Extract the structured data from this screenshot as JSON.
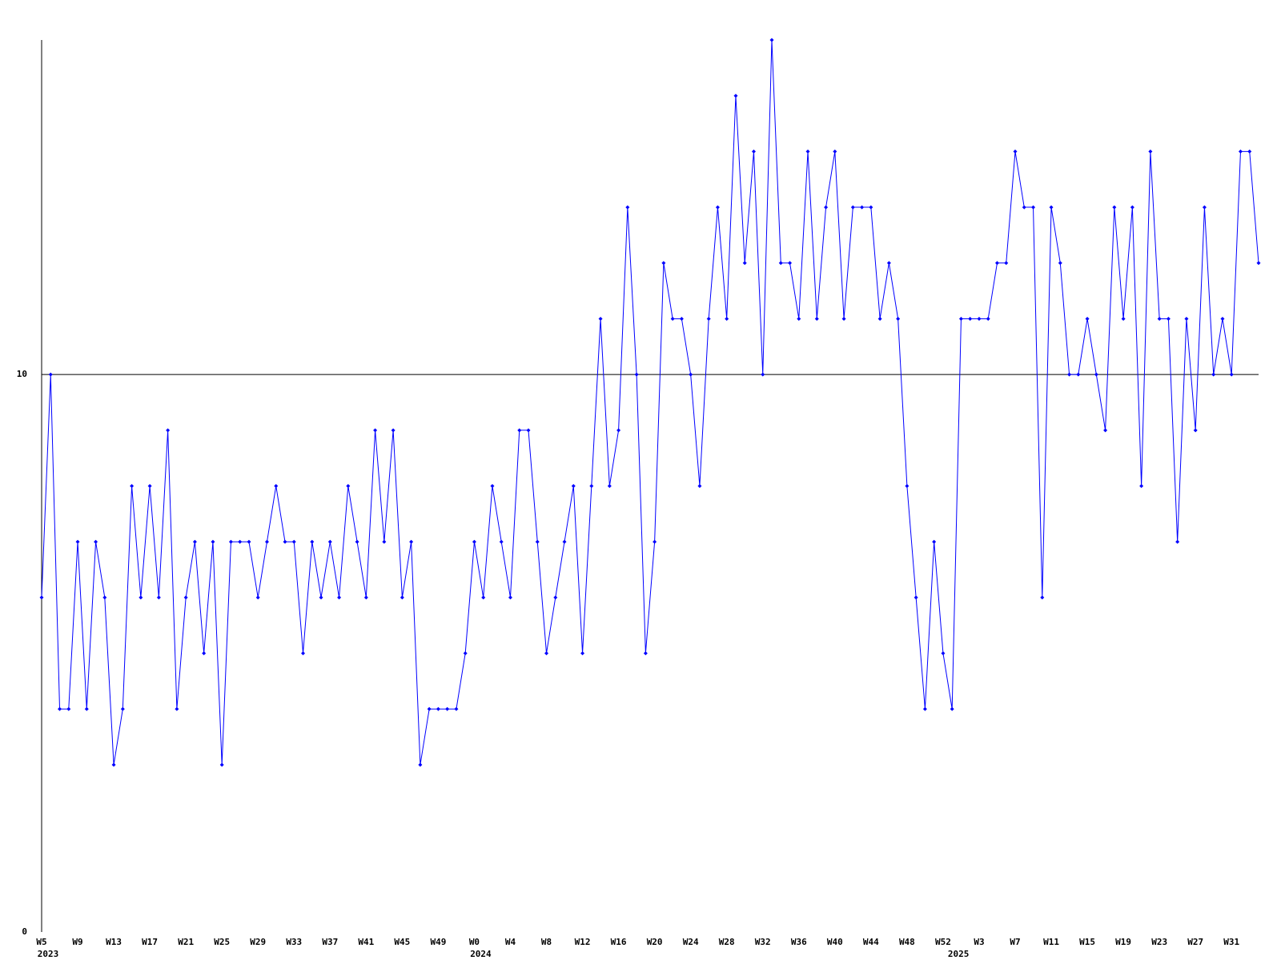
{
  "chart_data": {
    "type": "line",
    "categories": [
      "W5",
      null,
      null,
      null,
      "W9",
      null,
      null,
      null,
      "W13",
      null,
      null,
      null,
      "W17",
      null,
      null,
      null,
      "W21",
      null,
      null,
      null,
      "W25",
      null,
      null,
      null,
      "W29",
      null,
      null,
      null,
      "W33",
      null,
      null,
      null,
      "W37",
      null,
      null,
      null,
      "W41",
      null,
      null,
      null,
      "W45",
      null,
      null,
      null,
      "W49",
      null,
      null,
      null,
      "W0",
      null,
      null,
      null,
      "W4",
      null,
      null,
      null,
      "W8",
      null,
      null,
      null,
      "W12",
      null,
      null,
      null,
      "W16",
      null,
      null,
      null,
      "W20",
      null,
      null,
      null,
      "W24",
      null,
      null,
      null,
      "W28",
      null,
      null,
      null,
      "W32",
      null,
      null,
      null,
      "W36",
      null,
      null,
      null,
      "W40",
      null,
      null,
      null,
      "W44",
      null,
      null,
      null,
      "W48",
      null,
      null,
      null,
      "W52",
      null,
      null,
      null,
      "W3",
      null,
      null,
      null,
      "W7",
      null,
      null,
      null,
      "W11",
      null,
      null,
      null,
      "W15",
      null,
      null,
      null,
      "W19",
      null,
      null,
      null,
      "W23",
      null,
      null,
      null,
      "W27",
      null,
      null,
      null,
      "W31",
      null,
      null,
      null
    ],
    "year_labels": [
      "2023",
      null,
      null,
      null,
      null,
      null,
      null,
      null,
      null,
      null,
      null,
      null,
      null,
      null,
      null,
      null,
      null,
      null,
      null,
      null,
      null,
      null,
      null,
      null,
      null,
      null,
      null,
      null,
      null,
      null,
      null,
      null,
      null,
      null,
      null,
      null,
      null,
      null,
      null,
      null,
      null,
      null,
      null,
      null,
      null,
      null,
      null,
      null,
      "2024",
      null,
      null,
      null,
      null,
      null,
      null,
      null,
      null,
      null,
      null,
      null,
      null,
      null,
      null,
      null,
      null,
      null,
      null,
      null,
      null,
      null,
      null,
      null,
      null,
      null,
      null,
      null,
      null,
      null,
      null,
      null,
      null,
      null,
      null,
      null,
      null,
      null,
      null,
      null,
      null,
      null,
      null,
      null,
      null,
      null,
      null,
      null,
      null,
      null,
      null,
      null,
      null,
      "2025",
      null,
      null,
      null,
      null,
      null,
      null,
      null,
      null,
      null,
      null,
      null,
      null,
      null,
      null,
      null,
      null,
      null,
      null,
      null,
      null,
      null,
      null,
      null,
      null,
      null,
      null,
      null,
      null,
      null,
      null,
      null,
      null,
      null,
      null
    ],
    "series": [
      {
        "color": "#0000ff",
        "values": [
          6,
          10,
          4,
          4,
          7,
          4,
          7,
          6,
          3,
          4,
          8,
          6,
          8,
          6,
          9,
          4,
          6,
          7,
          5,
          7,
          3,
          7,
          7,
          7,
          6,
          7,
          8,
          7,
          7,
          5,
          7,
          6,
          7,
          6,
          8,
          7,
          6,
          9,
          7,
          9,
          6,
          7,
          3,
          4,
          4,
          4,
          4,
          5,
          7,
          6,
          8,
          7,
          6,
          9,
          9,
          7,
          5,
          6,
          7,
          8,
          5,
          8,
          11,
          8,
          9,
          13,
          10,
          5,
          7,
          12,
          11,
          11,
          10,
          8,
          11,
          13,
          11,
          15,
          12,
          14,
          10,
          16,
          12,
          12,
          11,
          14,
          11,
          13,
          14,
          11,
          13,
          13,
          13,
          11,
          12,
          11,
          8,
          6,
          4,
          7,
          5,
          4,
          11,
          11,
          11,
          11,
          12,
          12,
          14,
          13,
          13,
          6,
          13,
          12,
          10,
          10,
          11,
          10,
          9,
          13,
          11,
          13,
          8,
          14,
          11,
          11,
          7,
          11,
          9,
          13,
          10,
          11,
          10,
          14,
          14,
          12
        ]
      }
    ],
    "ylim": [
      0,
      16
    ],
    "yticks": [
      0,
      10
    ],
    "grid": true
  }
}
